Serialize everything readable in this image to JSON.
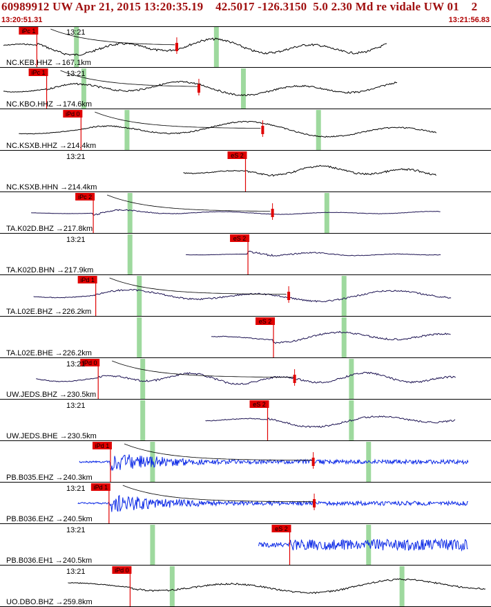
{
  "header": {
    "title": "60989912 UW Apr 21, 2015 13:20:35.19    42.5017 -126.3150  5.0 2.30 Md re vidale UW 01    2",
    "start_time": "13:20:51.31",
    "end_time": "13:21:56.83"
  },
  "colors": {
    "header_text": "#a01010",
    "trace_black": "#000000",
    "trace_dark": "#1a1050",
    "trace_blue": "#0a28e6",
    "pick_red": "#e00000",
    "window_green": "#9ed99e"
  },
  "chart_data": {
    "type": "line",
    "time_start": "13:20:51.31",
    "time_end": "13:21:56.83",
    "traces": [
      {
        "station": "NC.KEB.HHZ",
        "distance": "167.1km",
        "time_label": "13:21",
        "pick_label": "iPc 1",
        "pick_t": 0.075,
        "pick2": {
          "label": "",
          "t": 0.36
        },
        "green": [
          0.155,
          0.44
        ],
        "color": "black",
        "amp": 0.75,
        "period": 22,
        "noise": 0.3,
        "envelope": false,
        "end_t": 0.8
      },
      {
        "station": "NC.KBO.HHZ",
        "distance": "174.6km",
        "time_label": "13:21",
        "pick_label": "iPc 1",
        "pick_t": 0.095,
        "pick2": {
          "label": "",
          "t": 0.405
        },
        "green": [
          0.17,
          0.495
        ],
        "color": "black",
        "amp": 0.7,
        "period": 26,
        "noise": 0.25,
        "envelope": false,
        "end_t": 0.82
      },
      {
        "station": "NC.KSXB.HHZ",
        "distance": "214.4km",
        "time_label": "",
        "pick_label": "iPd 0",
        "pick_t": 0.165,
        "pick2": {
          "label": "",
          "t": 0.535
        },
        "green": [
          0.258,
          0.648
        ],
        "color": "black",
        "amp": 0.8,
        "period": 34,
        "noise": 0.15,
        "envelope": false,
        "end_t": 0.9
      },
      {
        "station": "NC.KSXB.HHN",
        "distance": "214.4km",
        "time_label": "13:21",
        "pick_label": "eS 2",
        "pick_t": 0.5,
        "pick2": null,
        "green": [],
        "color": "black",
        "amp": 0.5,
        "period": 20,
        "noise": 0.4,
        "envelope": false,
        "end_t": 0.9
      },
      {
        "station": "TA.K02D.BHZ",
        "distance": "217.8km",
        "time_label": "",
        "pick_label": "iPc 2",
        "pick_t": 0.19,
        "pick2": {
          "label": "",
          "t": 0.555
        },
        "green": [
          0.264,
          0.665
        ],
        "color": "dark",
        "amp": 0.4,
        "period": 24,
        "noise": 0.3,
        "envelope": true,
        "end_t": 0.91
      },
      {
        "station": "TA.K02D.BHN",
        "distance": "217.9km",
        "time_label": "13:21",
        "pick_label": "eS 2",
        "pick_t": 0.505,
        "pick2": null,
        "green": [
          0.264
        ],
        "color": "dark",
        "amp": 0.3,
        "period": 18,
        "noise": 0.5,
        "envelope": true,
        "end_t": 0.91
      },
      {
        "station": "TA.L02E.BHZ",
        "distance": "226.2km",
        "time_label": "",
        "pick_label": "iPd 1",
        "pick_t": 0.195,
        "pick2": {
          "label": "",
          "t": 0.588
        },
        "green": [
          0.283,
          0.7
        ],
        "color": "dark",
        "amp": 0.55,
        "period": 30,
        "noise": 0.3,
        "envelope": false,
        "end_t": 0.93
      },
      {
        "station": "TA.L02E.BHE",
        "distance": "226.2km",
        "time_label": "",
        "pick_label": "eS 2",
        "pick_t": 0.557,
        "pick2": null,
        "green": [
          0.283,
          0.7
        ],
        "color": "dark",
        "amp": 0.55,
        "period": 26,
        "noise": 0.35,
        "envelope": false,
        "end_t": 0.93
      },
      {
        "station": "UW.JEDS.BHZ",
        "distance": "230.5km",
        "time_label": "13:21",
        "pick_label": "iPd 0",
        "pick_t": 0.2,
        "pick2": {
          "label": "",
          "t": 0.6
        },
        "green": [
          0.29,
          0.715
        ],
        "color": "dark",
        "amp": 0.55,
        "period": 20,
        "noise": 0.35,
        "envelope": false,
        "end_t": 0.94
      },
      {
        "station": "UW.JEDS.BHE",
        "distance": "230.5km",
        "time_label": "13:21",
        "pick_label": "eS 2",
        "pick_t": 0.545,
        "pick2": null,
        "green": [
          0.29,
          0.715
        ],
        "color": "dark",
        "amp": 0.6,
        "period": 28,
        "noise": 0.3,
        "envelope": false,
        "end_t": 0.94
      },
      {
        "station": "PB.B035.EHZ",
        "distance": "240.3km",
        "time_label": "",
        "pick_label": "iPd 1",
        "pick_t": 0.225,
        "pick2": {
          "label": "",
          "t": 0.638
        },
        "green": [
          0.31,
          0.75
        ],
        "color": "blue",
        "amp": 0.55,
        "period": 4,
        "noise": 1.0,
        "envelope": true,
        "end_t": 0.965
      },
      {
        "station": "PB.B036.EHZ",
        "distance": "240.5km",
        "time_label": "13:21",
        "pick_label": "iPd 1",
        "pick_t": 0.222,
        "pick2": {
          "label": "",
          "t": 0.64
        },
        "green": [],
        "color": "blue",
        "amp": 0.55,
        "period": 4,
        "noise": 1.0,
        "envelope": true,
        "end_t": 0.965
      },
      {
        "station": "PB.B036.EH1",
        "distance": "240.5km",
        "time_label": "13:21",
        "pick_label": "eS 2",
        "pick_t": 0.59,
        "pick2": null,
        "green": [
          0.31,
          0.75
        ],
        "color": "blue",
        "amp": 0.5,
        "period": 4,
        "noise": 1.0,
        "envelope": false,
        "end_t": 0.965
      },
      {
        "station": "UO.DBO.BHZ",
        "distance": "259.8km",
        "time_label": "13:21",
        "pick_label": "iPd 0",
        "pick_t": 0.265,
        "pick2": null,
        "green": [
          0.35,
          0.818
        ],
        "color": "black",
        "amp": 0.7,
        "period": 38,
        "noise": 0.25,
        "envelope": false,
        "end_t": 1.0
      }
    ]
  }
}
